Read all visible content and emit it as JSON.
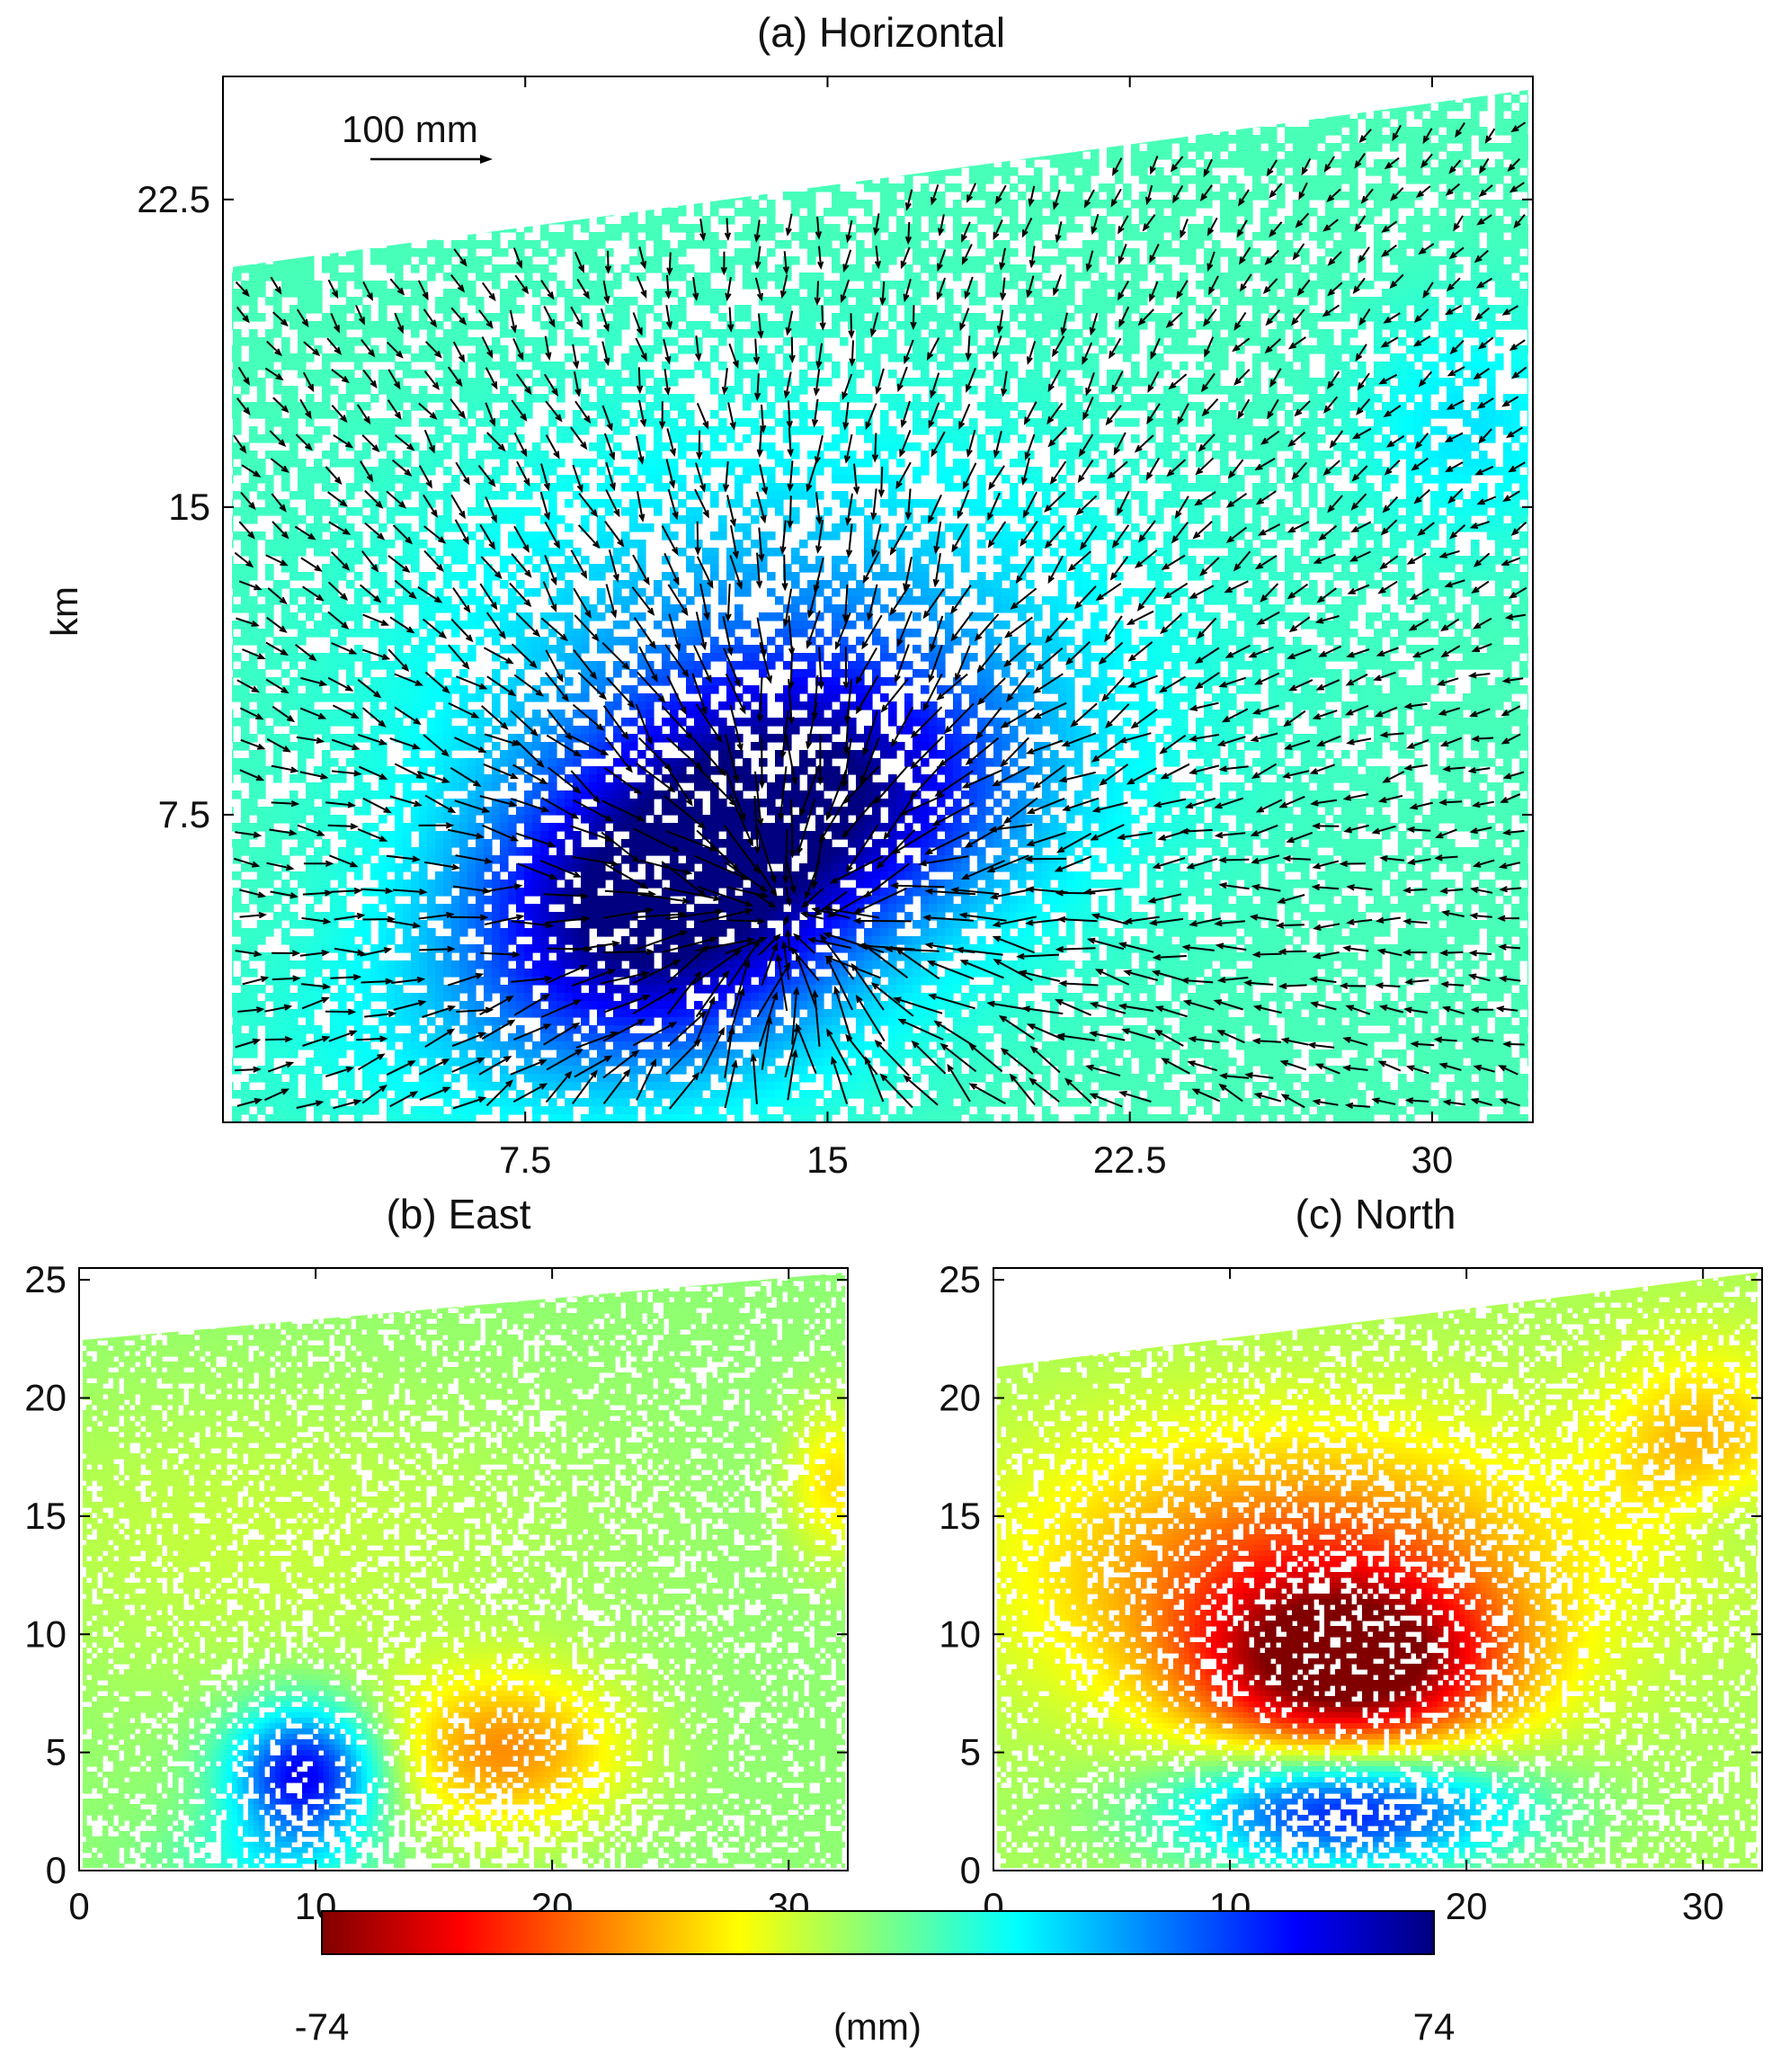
{
  "chart_data": [
    {
      "id": "a",
      "type": "heatmap",
      "title": "(a) Horizontal",
      "ylabel": "km",
      "xlabel": "",
      "x_ticks": [
        "7.5",
        "15",
        "22.5",
        "30"
      ],
      "y_ticks": [
        "7.5",
        "15",
        "22.5"
      ],
      "x_tick_values": [
        7.5,
        15,
        22.5,
        30
      ],
      "y_tick_values": [
        7.5,
        15,
        22.5
      ],
      "xlim": [
        0,
        32.5
      ],
      "ylim": [
        0,
        25.5
      ],
      "quantity": "horizontal displacement magnitude with displacement vectors",
      "scale_arrow_label": "100 mm",
      "scale_arrow_mm": 100,
      "vector_convergence_point_km": [
        14,
        5
      ],
      "max_value_mm": 74,
      "grid": false
    },
    {
      "id": "b",
      "type": "heatmap",
      "title": "(b) East",
      "x_ticks": [
        "0",
        "10",
        "20",
        "30"
      ],
      "y_ticks": [
        "0",
        "5",
        "10",
        "15",
        "20",
        "25"
      ],
      "x_tick_values": [
        0,
        10,
        20,
        30
      ],
      "y_tick_values": [
        0,
        5,
        10,
        15,
        20,
        25
      ],
      "xlim": [
        0,
        32.5
      ],
      "ylim": [
        0,
        25.5
      ],
      "grid": false
    },
    {
      "id": "c",
      "type": "heatmap",
      "title": "(c) North",
      "x_ticks": [
        "0",
        "10",
        "20",
        "30"
      ],
      "y_ticks": [
        "0",
        "5",
        "10",
        "15",
        "20",
        "25"
      ],
      "x_tick_values": [
        0,
        10,
        20,
        30
      ],
      "y_tick_values": [
        0,
        5,
        10,
        15,
        20,
        25
      ],
      "xlim": [
        0,
        32.5
      ],
      "ylim": [
        0,
        25.5
      ],
      "grid": false
    }
  ],
  "colorbar": {
    "min_label": "-74",
    "max_label": "74",
    "unit_label": "(mm)",
    "min": -74,
    "max": 74,
    "colormap": "jet-reversed",
    "colors": [
      "#800000",
      "#ff0000",
      "#ff8000",
      "#ffff00",
      "#80ff80",
      "#00ffff",
      "#0080ff",
      "#0000ff",
      "#000080"
    ]
  }
}
